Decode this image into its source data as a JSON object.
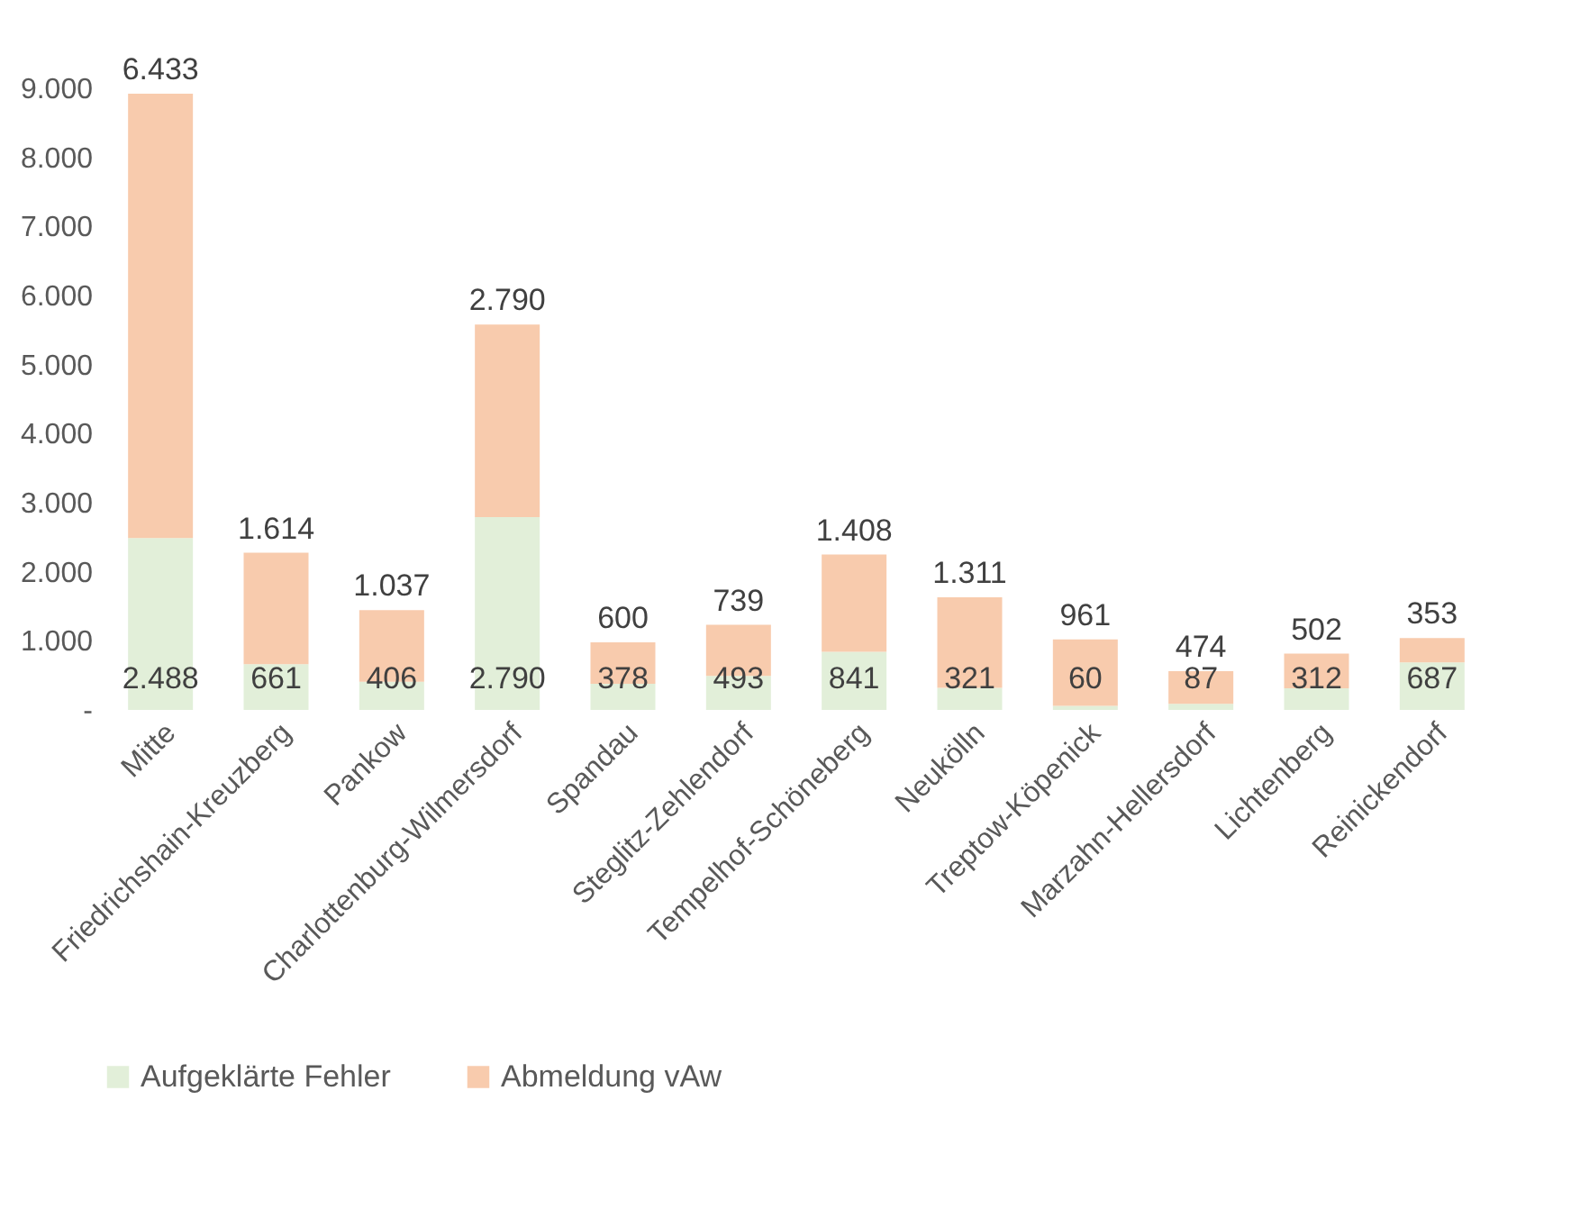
{
  "chart_data": {
    "type": "bar",
    "stacked": true,
    "categories": [
      "Mitte",
      "Friedrichshain-Kreuzberg",
      "Pankow",
      "Charlottenburg-Wilmersdorf",
      "Spandau",
      "Steglitz-Zehlendorf",
      "Tempelhof-Schöneberg",
      "Neukölln",
      "Treptow-Köpenick",
      "Marzahn-Hellersdorf",
      "Lichtenberg",
      "Reinickendorf"
    ],
    "series": [
      {
        "name": "Aufgeklärte Fehler",
        "color": "#e2efd9",
        "values": [
          2488,
          661,
          406,
          2790,
          378,
          493,
          841,
          321,
          60,
          87,
          312,
          687
        ],
        "value_labels": [
          "2.488",
          "661",
          "406",
          "2.790",
          "378",
          "493",
          "841",
          "321",
          "60",
          "87",
          "312",
          "687"
        ]
      },
      {
        "name": "Abmeldung vAw",
        "color": "#f8cbad",
        "values": [
          6433,
          1614,
          1037,
          2790,
          600,
          739,
          1408,
          1311,
          961,
          474,
          502,
          353
        ],
        "value_labels": [
          "6.433",
          "1.614",
          "1.037",
          "2.790",
          "600",
          "739",
          "1.408",
          "1.311",
          "961",
          "474",
          "502",
          "353"
        ]
      }
    ],
    "ylim": [
      0,
      9000
    ],
    "yticks": [
      {
        "value": 0,
        "label": "-"
      },
      {
        "value": 1000,
        "label": "1.000"
      },
      {
        "value": 2000,
        "label": "2.000"
      },
      {
        "value": 3000,
        "label": "3.000"
      },
      {
        "value": 4000,
        "label": "4.000"
      },
      {
        "value": 5000,
        "label": "5.000"
      },
      {
        "value": 6000,
        "label": "6.000"
      },
      {
        "value": 7000,
        "label": "7.000"
      },
      {
        "value": 8000,
        "label": "8.000"
      },
      {
        "value": 9000,
        "label": "9.000"
      }
    ],
    "grid": false,
    "legend": "bottom"
  }
}
